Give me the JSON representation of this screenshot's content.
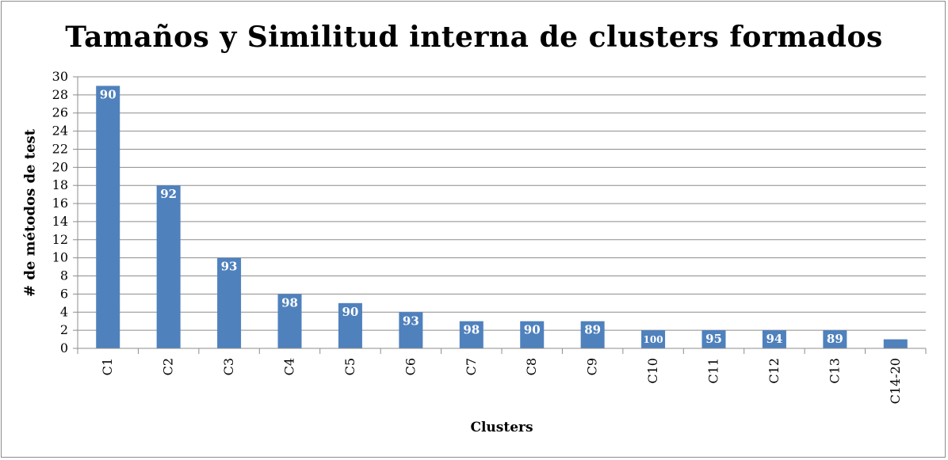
{
  "chart_data": {
    "type": "bar",
    "title": "Tamaños y Similitud interna de clusters formados",
    "xlabel": "Clusters",
    "ylabel": "# de métodos de test",
    "ylim": [
      0,
      30
    ],
    "yticks": [
      0,
      2,
      4,
      6,
      8,
      10,
      12,
      14,
      16,
      18,
      20,
      22,
      24,
      26,
      28,
      30
    ],
    "grid": true,
    "categories": [
      "C1",
      "C2",
      "C3",
      "C4",
      "C5",
      "C6",
      "C7",
      "C8",
      "C9",
      "C10",
      "C11",
      "C12",
      "C13",
      "C14-20"
    ],
    "values": [
      29,
      18,
      10,
      6,
      5,
      4,
      3,
      3,
      3,
      2,
      2,
      2,
      2,
      1
    ],
    "data_labels": [
      "90",
      "92",
      "93",
      "98",
      "90",
      "93",
      "98",
      "90",
      "89",
      "100",
      "95",
      "94",
      "89",
      ""
    ],
    "colors": {
      "bar": "#4f81bd",
      "grid": "#8c8c8c",
      "axis": "#8c8c8c"
    }
  }
}
